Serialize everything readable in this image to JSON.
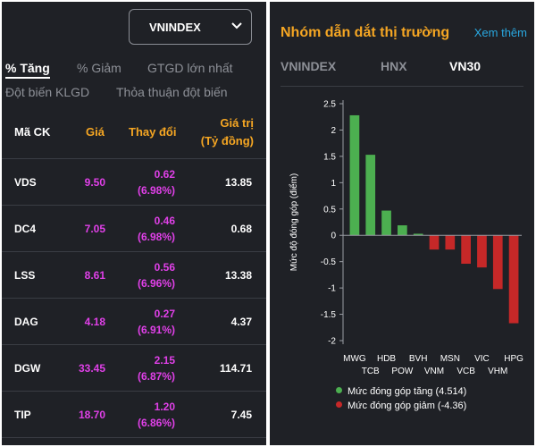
{
  "left_panel": {
    "index_select": {
      "value": "VNINDEX"
    },
    "filter_tabs": [
      {
        "label": "% Tăng",
        "active": true
      },
      {
        "label": "% Giảm",
        "active": false
      },
      {
        "label": "GTGD lớn nhất",
        "active": false
      },
      {
        "label": "Đột biến KLGD",
        "active": false
      },
      {
        "label": "Thỏa thuận đột biến",
        "active": false
      }
    ],
    "table": {
      "headers": {
        "code": "Mã CK",
        "price": "Giá",
        "change": "Thay đổi",
        "value_line1": "Giá trị",
        "value_line2": "(Tỷ đồng)"
      },
      "rows": [
        {
          "code": "VDS",
          "price": "9.50",
          "change": "0.62",
          "change_pct": "(6.98%)",
          "value": "13.85"
        },
        {
          "code": "DC4",
          "price": "7.05",
          "change": "0.46",
          "change_pct": "(6.98%)",
          "value": "0.68"
        },
        {
          "code": "LSS",
          "price": "8.61",
          "change": "0.56",
          "change_pct": "(6.96%)",
          "value": "13.38"
        },
        {
          "code": "DAG",
          "price": "4.18",
          "change": "0.27",
          "change_pct": "(6.91%)",
          "value": "4.37"
        },
        {
          "code": "DGW",
          "price": "33.45",
          "change": "2.15",
          "change_pct": "(6.87%)",
          "value": "114.71"
        },
        {
          "code": "TIP",
          "price": "18.70",
          "change": "1.20",
          "change_pct": "(6.86%)",
          "value": "7.45"
        }
      ]
    }
  },
  "right_panel": {
    "title": "Nhóm dẫn dắt thị trường",
    "more_link": "Xem thêm",
    "tabs": [
      {
        "label": "VNINDEX",
        "active": false
      },
      {
        "label": "HNX",
        "active": false
      },
      {
        "label": "VN30",
        "active": true
      }
    ]
  },
  "colors": {
    "up": "#4caf50",
    "down": "#c62828",
    "accent": "#f5a623",
    "link": "#29a8e0",
    "price_up": "#e040e8"
  },
  "chart_data": {
    "type": "bar",
    "ylabel": "Mức độ đóng góp (điểm)",
    "ylim": [
      -2,
      2.5
    ],
    "yticks": [
      "2.5",
      "2",
      "1.5",
      "1",
      "0.5",
      "0",
      "-0.5",
      "-1",
      "-1.5",
      "-2"
    ],
    "categories": [
      "MWG",
      "TCB",
      "HDB",
      "POW",
      "BVH",
      "VNM",
      "MSN",
      "VCB",
      "VIC",
      "VHM",
      "HPG"
    ],
    "values": [
      2.28,
      1.53,
      0.47,
      0.19,
      0.03,
      -0.27,
      -0.27,
      -0.54,
      -0.61,
      -1.02,
      -1.67
    ],
    "legend": [
      {
        "label": "Mức đóng góp tăng (4.514)",
        "color": "#4caf50"
      },
      {
        "label": "Mức đóng góp giảm (-4.36)",
        "color": "#c62828"
      }
    ]
  }
}
